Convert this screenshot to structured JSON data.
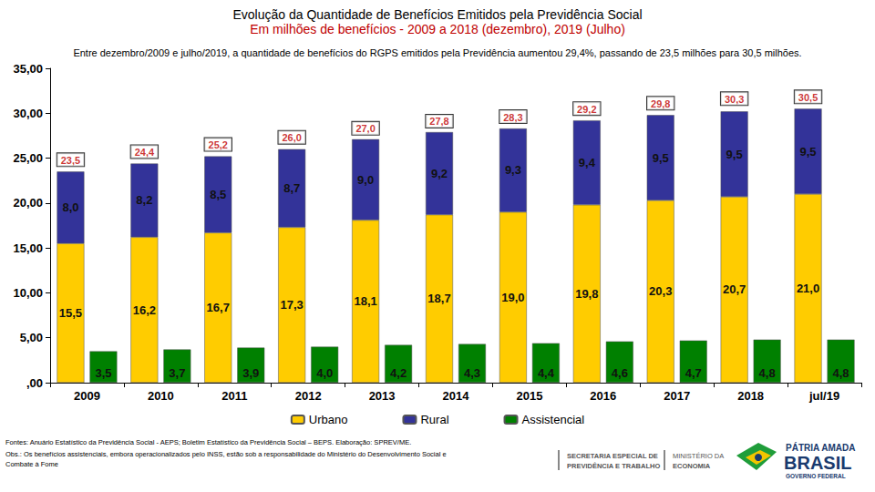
{
  "chart_data": {
    "type": "bar",
    "title": "Evolução da Quantidade de Benefícios Emitidos pela Previdência Social",
    "subtitle": "Em milhões de benefícios - 2009 a 2018 (dezembro), 2019 (Julho)",
    "annotations": [
      "Entre dezembro/2009 e julho/2019, a quantidade de benefícios do RGPS emitidos pela Previdência aumentou 29,4%, passando de 23,5 milhões para 30,5 milhões.",
      "Fontes: Anuário Estatístico da Previdência Social - AEPS; Boletim Estatístico da Previdência Social – BEPS. Elaboração: SPREV/ME.",
      "Obs.: Os benefícios assistenciais, embora operacionalizados pelo INSS, estão sob a responsabilidade do Ministério do Desenvolvimento Social e",
      "Combate à Fome",
      "SECRETARIA ESPECIAL DE",
      "PREVIDÊNCIA E TRABALHO",
      "MINISTÉRIO DA",
      "ECONOMIA",
      "PÁTRIA AMADA",
      "BRASIL",
      "GOVERNO FEDERAL"
    ],
    "categories": [
      "2009",
      "2010",
      "2011",
      "2012",
      "2013",
      "2014",
      "2015",
      "2016",
      "2017",
      "2018",
      "jul/19"
    ],
    "series": [
      {
        "name": "Urbano",
        "color": "#FFCC00",
        "values": [
          15.5,
          16.2,
          16.7,
          17.3,
          18.1,
          18.7,
          19.0,
          19.8,
          20.3,
          20.7,
          21.0
        ],
        "value_labels": [
          "15,5",
          "16,2",
          "16,7",
          "17,3",
          "18,1",
          "18,7",
          "19,0",
          "19,8",
          "20,3",
          "20,7",
          "21,0"
        ]
      },
      {
        "name": "Rural",
        "color": "#333399",
        "values": [
          8.0,
          8.2,
          8.5,
          8.7,
          9.0,
          9.2,
          9.3,
          9.4,
          9.5,
          9.5,
          9.5
        ],
        "value_labels": [
          "8,0",
          "8,2",
          "8,5",
          "8,7",
          "9,0",
          "9,2",
          "9,3",
          "9,4",
          "9,5",
          "9,5",
          "9,5"
        ]
      },
      {
        "name": "Assistencial",
        "color": "#008000",
        "values": [
          3.5,
          3.7,
          3.9,
          4.0,
          4.2,
          4.3,
          4.4,
          4.6,
          4.7,
          4.8,
          4.8
        ],
        "value_labels": [
          "3,5",
          "3,7",
          "3,9",
          "4,0",
          "4,2",
          "4,3",
          "4,4",
          "4,6",
          "4,7",
          "4,8",
          "4,8"
        ]
      }
    ],
    "totals": {
      "values": [
        23.5,
        24.4,
        25.2,
        26.0,
        27.0,
        27.8,
        28.3,
        29.2,
        29.8,
        30.3,
        30.5
      ],
      "value_labels": [
        "23,5",
        "24,4",
        "25,2",
        "26,0",
        "27,0",
        "27,8",
        "28,3",
        "29,2",
        "29,8",
        "30,3",
        "30,5"
      ]
    },
    "stacked": [
      "Urbano",
      "Rural"
    ],
    "ylim": [
      0,
      35
    ],
    "yticks": [
      {
        "value": 0,
        "label": ",00"
      },
      {
        "value": 5,
        "label": "5,00"
      },
      {
        "value": 10,
        "label": "10,00"
      },
      {
        "value": 15,
        "label": "15,00"
      },
      {
        "value": 20,
        "label": "20,00"
      },
      {
        "value": 25,
        "label": "25,00"
      },
      {
        "value": 30,
        "label": "30,00"
      },
      {
        "value": 35,
        "label": "35,00"
      }
    ],
    "grid": false,
    "legend": "bottom",
    "data_labels": true
  }
}
